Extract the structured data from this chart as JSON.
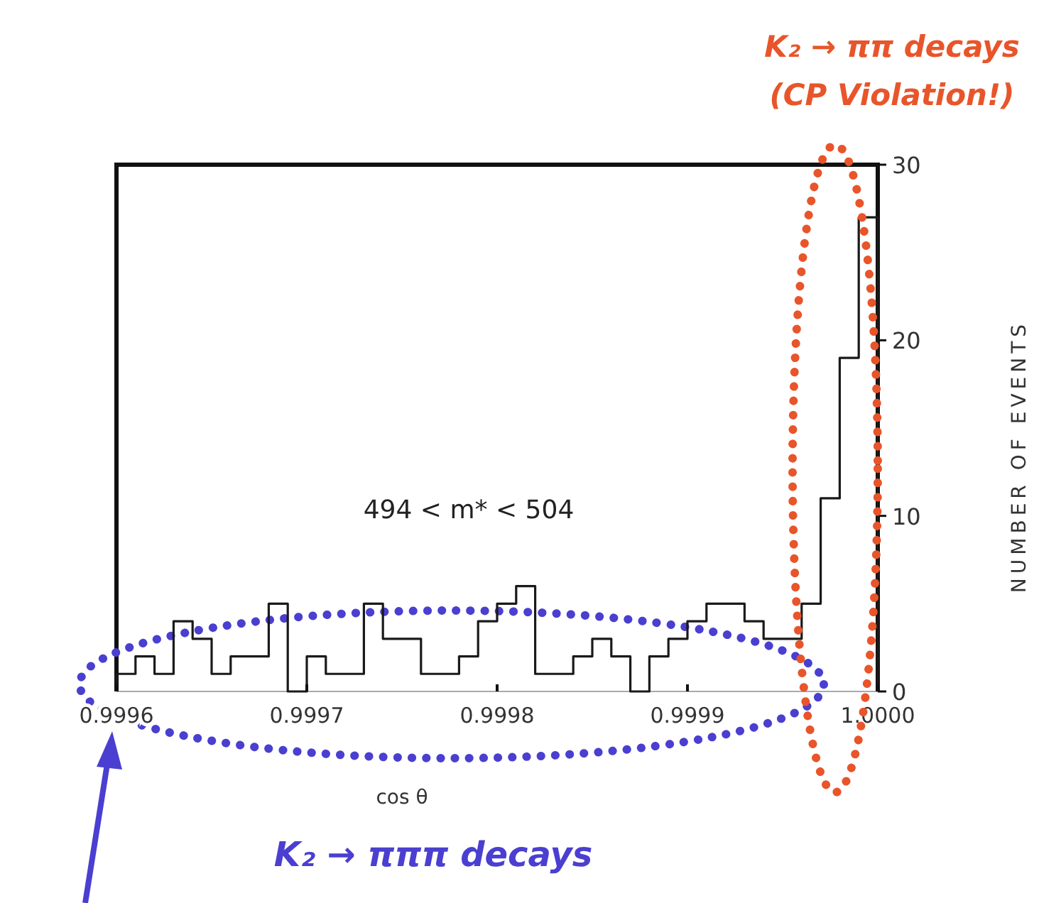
{
  "chart_data": {
    "type": "histogram",
    "xlabel": "cos θ",
    "ylabel": "NUMBER OF EVENTS",
    "bins": [
      0.9996,
      0.99961,
      0.99962,
      0.99963,
      0.99964,
      0.99965,
      0.99966,
      0.99967,
      0.99968,
      0.99969,
      0.9997,
      0.99971,
      0.99972,
      0.99973,
      0.99974,
      0.99975,
      0.99976,
      0.99977,
      0.99978,
      0.99979,
      0.9998,
      0.99981,
      0.99982,
      0.99983,
      0.99984,
      0.99985,
      0.99986,
      0.99987,
      0.99988,
      0.99989,
      0.9999,
      0.99991,
      0.99992,
      0.99993,
      0.99994,
      0.99995,
      0.99996,
      0.99997,
      0.99998,
      0.99999,
      1.0
    ],
    "values": [
      1,
      2,
      1,
      4,
      3,
      1,
      2,
      2,
      5,
      0,
      2,
      1,
      1,
      5,
      3,
      3,
      1,
      1,
      2,
      4,
      5,
      6,
      1,
      1,
      2,
      3,
      2,
      0,
      2,
      3,
      4,
      5,
      5,
      4,
      3,
      3,
      5,
      11,
      19,
      27
    ],
    "color": "#1a1a1a",
    "xlim": [
      0.9996,
      1.0
    ],
    "xticks": [
      0.9996,
      0.9997,
      0.9998,
      0.9999,
      {
        "value": 1,
        "label": "1.0000"
      }
    ],
    "ylim": [
      0,
      30
    ],
    "yticks": [
      0,
      10,
      20,
      30
    ],
    "annotations": [
      "494 < m* < 504",
      "K₂ → ππ decays",
      "(CP Violation!)",
      "K₂ → πππ decays"
    ]
  }
}
